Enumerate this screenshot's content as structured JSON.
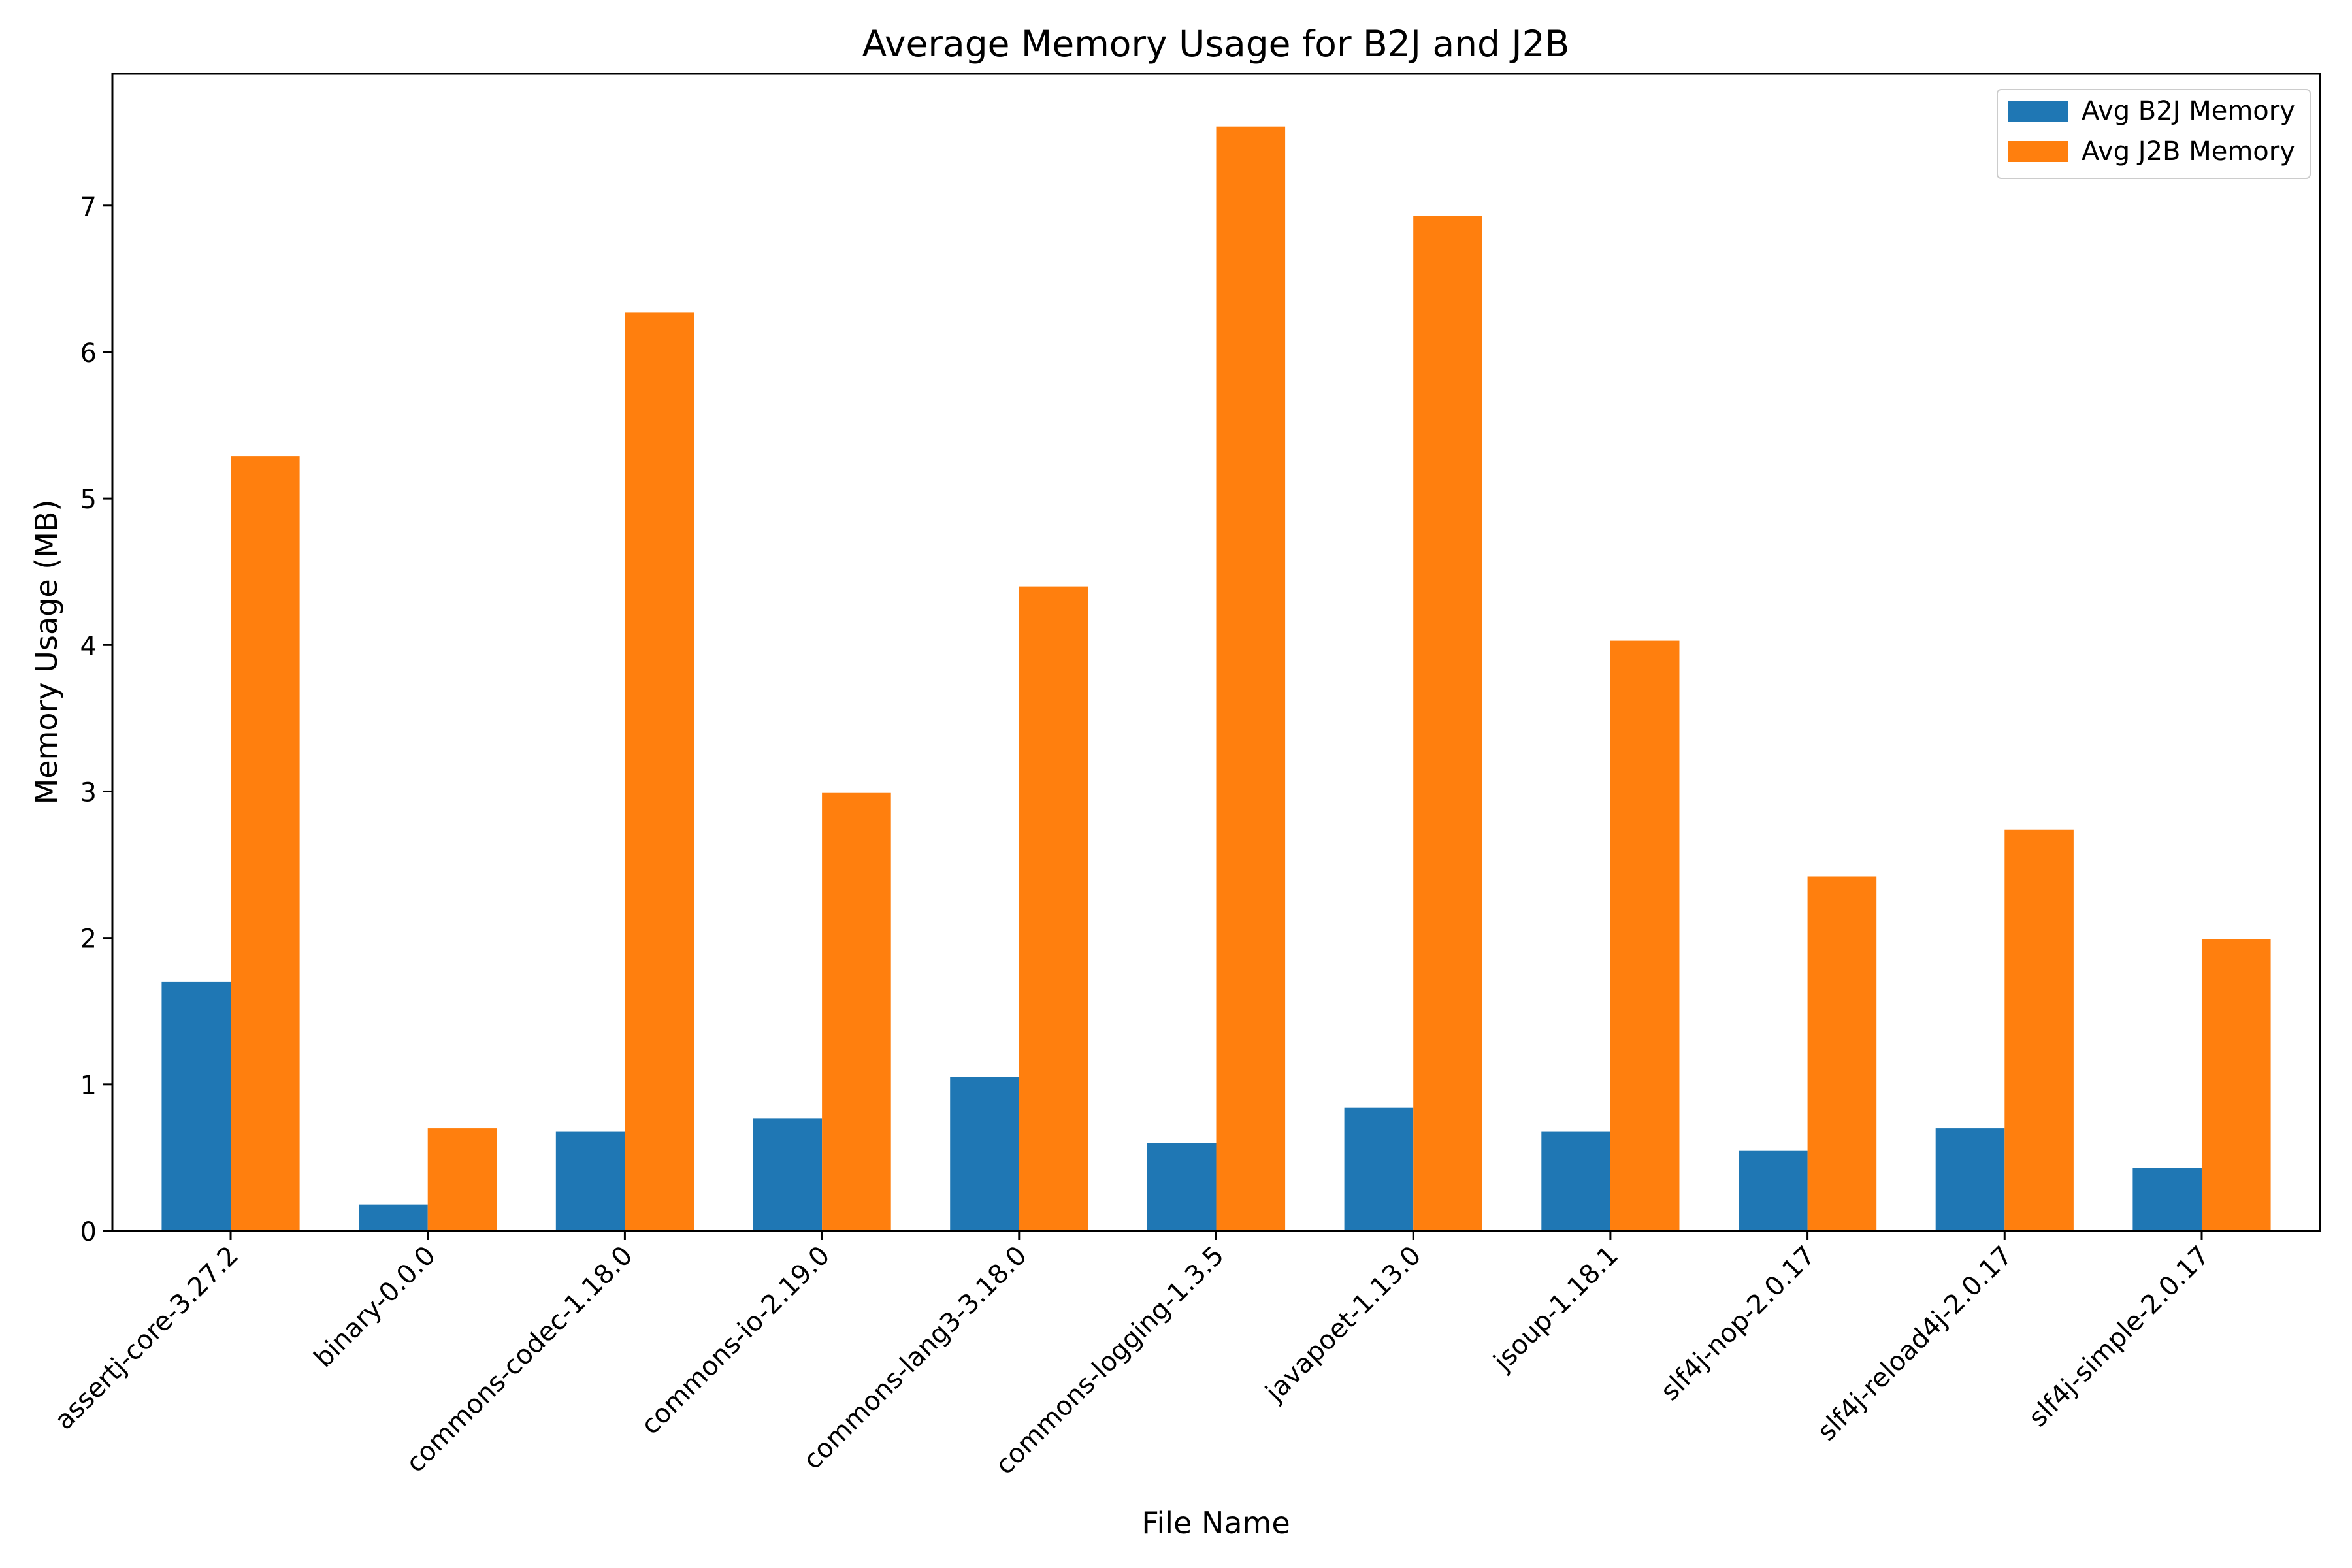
{
  "chart_data": {
    "type": "bar",
    "title": "Average Memory Usage for B2J and J2B",
    "xlabel": "File Name",
    "ylabel": "Memory Usage (MB)",
    "ylim": [
      0,
      7.9
    ],
    "yticks": [
      0,
      1,
      2,
      3,
      4,
      5,
      6,
      7
    ],
    "grid": false,
    "legend_position": "top-right",
    "categories": [
      "assertj-core-3.27.2",
      "binary-0.0.0",
      "commons-codec-1.18.0",
      "commons-io-2.19.0",
      "commons-lang3-3.18.0",
      "commons-logging-1.3.5",
      "javapoet-1.13.0",
      "jsoup-1.18.1",
      "slf4j-nop-2.0.17",
      "slf4j-reload4j-2.0.17",
      "slf4j-simple-2.0.17"
    ],
    "series": [
      {
        "name": "Avg B2J Memory",
        "color": "#1f77b4",
        "values": [
          1.7,
          0.18,
          0.68,
          0.77,
          1.05,
          0.6,
          0.84,
          0.68,
          0.55,
          0.7,
          0.43
        ]
      },
      {
        "name": "Avg J2B Memory",
        "color": "#ff7f0e",
        "values": [
          5.29,
          0.7,
          6.27,
          2.99,
          4.4,
          7.54,
          6.93,
          4.03,
          2.42,
          2.74,
          1.99
        ]
      }
    ]
  }
}
